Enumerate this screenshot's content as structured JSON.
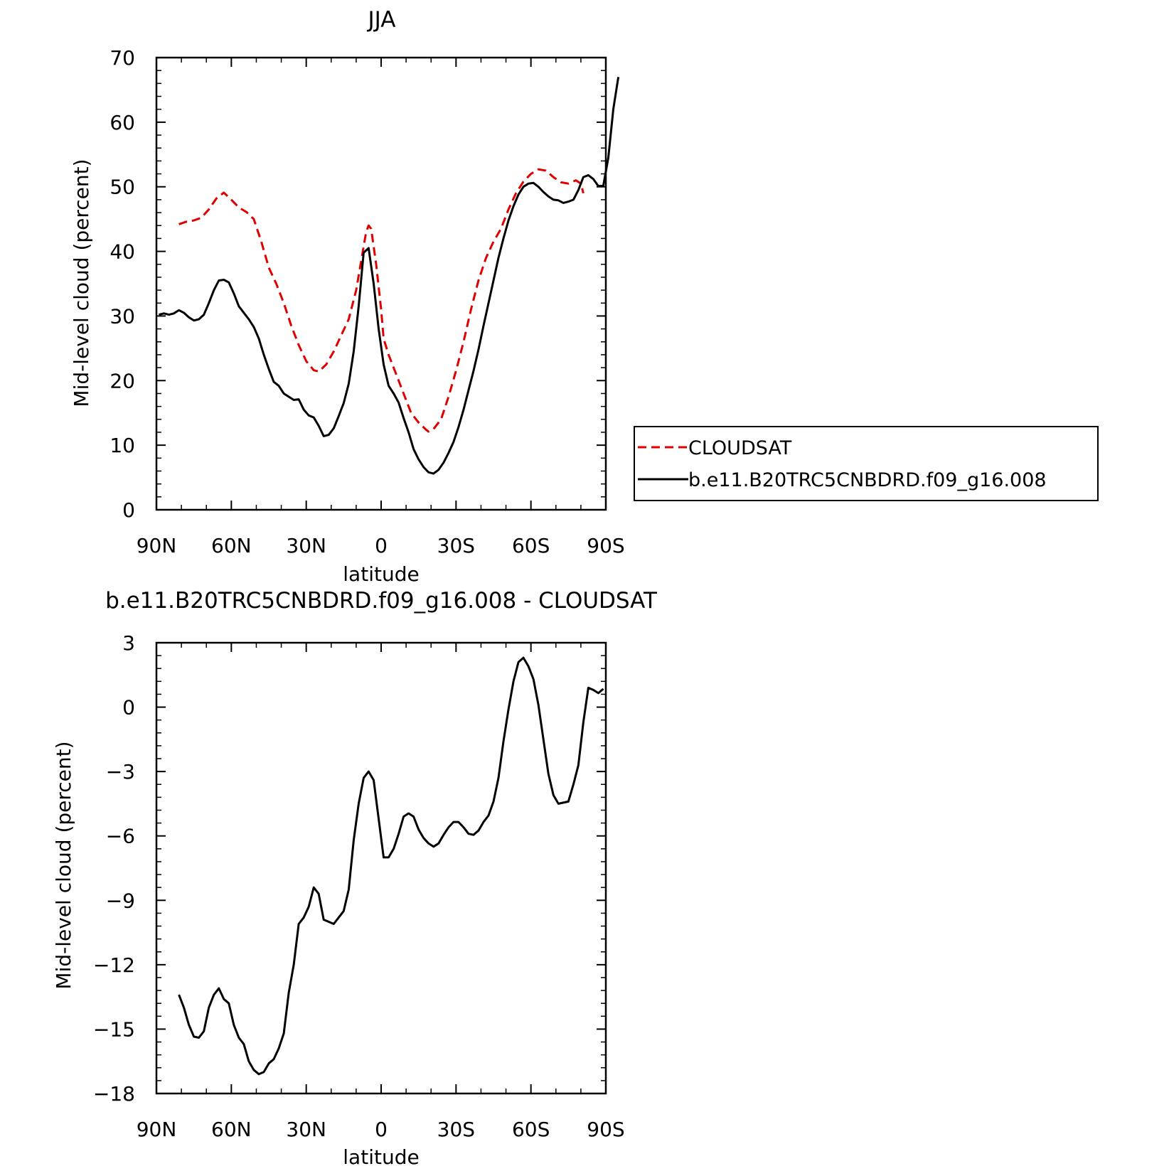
{
  "chart_data": [
    {
      "type": "line",
      "title": "JJA",
      "xlabel": "latitude",
      "ylabel": "Mid-level cloud (percent)",
      "xlim": [
        90,
        -90
      ],
      "ylim": [
        0,
        70
      ],
      "x_ticks": [
        {
          "value": 90,
          "label": "90N"
        },
        {
          "value": 60,
          "label": "60N"
        },
        {
          "value": 30,
          "label": "30N"
        },
        {
          "value": 0,
          "label": "0"
        },
        {
          "value": -30,
          "label": "30S"
        },
        {
          "value": -60,
          "label": "60S"
        },
        {
          "value": -90,
          "label": "90S"
        }
      ],
      "y_ticks": [
        0,
        10,
        20,
        30,
        40,
        50,
        60,
        70
      ],
      "grid": false,
      "legend": {
        "placement": "right"
      },
      "series": [
        {
          "name": "CLOUDSAT",
          "color": "#e00000",
          "dash": "dashed",
          "points": [
            [
              81,
              44.2
            ],
            [
              78,
              44.6
            ],
            [
              75,
              44.8
            ],
            [
              72,
              45.2
            ],
            [
              69,
              46.5
            ],
            [
              66,
              48.2
            ],
            [
              63,
              49.1
            ],
            [
              60,
              48.0
            ],
            [
              57,
              46.8
            ],
            [
              54,
              46.1
            ],
            [
              51,
              45.0
            ],
            [
              48,
              41.5
            ],
            [
              45,
              37.5
            ],
            [
              42,
              35.0
            ],
            [
              39,
              32.0
            ],
            [
              36,
              28.5
            ],
            [
              33,
              25.5
            ],
            [
              30,
              23.0
            ],
            [
              27,
              21.6
            ],
            [
              25,
              21.4
            ],
            [
              22,
              22.5
            ],
            [
              19,
              24.5
            ],
            [
              16,
              27.0
            ],
            [
              13,
              29.5
            ],
            [
              10,
              34.0
            ],
            [
              8,
              38.5
            ],
            [
              6,
              43.0
            ],
            [
              5,
              44.0
            ],
            [
              4,
              43.5
            ],
            [
              2,
              38.0
            ],
            [
              0,
              31.0
            ],
            [
              -1,
              26.5
            ],
            [
              -3,
              24.0
            ],
            [
              -6,
              21.0
            ],
            [
              -9,
              18.0
            ],
            [
              -12,
              15.0
            ],
            [
              -15,
              13.5
            ],
            [
              -18,
              12.4
            ],
            [
              -19,
              12.1
            ],
            [
              -21,
              12.5
            ],
            [
              -24,
              14.0
            ],
            [
              -27,
              17.5
            ],
            [
              -30,
              21.5
            ],
            [
              -33,
              26.0
            ],
            [
              -36,
              31.0
            ],
            [
              -39,
              35.5
            ],
            [
              -42,
              39.0
            ],
            [
              -45,
              41.5
            ],
            [
              -48,
              43.5
            ],
            [
              -51,
              46.5
            ],
            [
              -54,
              49.0
            ],
            [
              -57,
              50.8
            ],
            [
              -60,
              52.0
            ],
            [
              -63,
              52.7
            ],
            [
              -66,
              52.5
            ],
            [
              -69,
              51.5
            ],
            [
              -72,
              50.7
            ],
            [
              -75,
              50.5
            ],
            [
              -78,
              51.0
            ],
            [
              -80,
              50.5
            ],
            [
              -81,
              49.0
            ]
          ]
        },
        {
          "name": "b.e11.B20TRC5CNBDRD.f09_g16.008",
          "color": "#000000",
          "dash": "solid",
          "points": [
            [
              89,
              30.2
            ],
            [
              87,
              30.4
            ],
            [
              85,
              30.2
            ],
            [
              83,
              30.4
            ],
            [
              81,
              30.9
            ],
            [
              79,
              30.5
            ],
            [
              77,
              29.8
            ],
            [
              75,
              29.3
            ],
            [
              73,
              29.5
            ],
            [
              71,
              30.2
            ],
            [
              69,
              32.0
            ],
            [
              67,
              34.0
            ],
            [
              65,
              35.5
            ],
            [
              63,
              35.6
            ],
            [
              61,
              35.2
            ],
            [
              59,
              33.5
            ],
            [
              57,
              31.5
            ],
            [
              55,
              30.5
            ],
            [
              53,
              29.5
            ],
            [
              51,
              28.3
            ],
            [
              49,
              26.5
            ],
            [
              47,
              24.0
            ],
            [
              45,
              21.8
            ],
            [
              43,
              19.8
            ],
            [
              41,
              19.2
            ],
            [
              39,
              18.0
            ],
            [
              37,
              17.5
            ],
            [
              35,
              17.0
            ],
            [
              33,
              17.1
            ],
            [
              31,
              15.5
            ],
            [
              29,
              14.6
            ],
            [
              27,
              14.3
            ],
            [
              25,
              13.0
            ],
            [
              23,
              11.4
            ],
            [
              21,
              11.6
            ],
            [
              19,
              12.6
            ],
            [
              17,
              14.5
            ],
            [
              15,
              16.5
            ],
            [
              13,
              19.5
            ],
            [
              11,
              24.5
            ],
            [
              9,
              31.5
            ],
            [
              7,
              39.8
            ],
            [
              5,
              40.5
            ],
            [
              3,
              35.0
            ],
            [
              1,
              28.0
            ],
            [
              -1,
              22.5
            ],
            [
              -3,
              19.2
            ],
            [
              -5,
              18.0
            ],
            [
              -7,
              16.6
            ],
            [
              -9,
              14.2
            ],
            [
              -11,
              12.0
            ],
            [
              -13,
              9.4
            ],
            [
              -15,
              7.8
            ],
            [
              -17,
              6.6
            ],
            [
              -19,
              5.8
            ],
            [
              -21,
              5.6
            ],
            [
              -23,
              6.2
            ],
            [
              -25,
              7.3
            ],
            [
              -27,
              8.8
            ],
            [
              -29,
              10.5
            ],
            [
              -31,
              12.8
            ],
            [
              -33,
              15.5
            ],
            [
              -35,
              18.5
            ],
            [
              -37,
              21.5
            ],
            [
              -39,
              24.8
            ],
            [
              -41,
              28.5
            ],
            [
              -43,
              32.0
            ],
            [
              -45,
              35.5
            ],
            [
              -47,
              39.0
            ],
            [
              -49,
              42.0
            ],
            [
              -51,
              44.8
            ],
            [
              -53,
              47.0
            ],
            [
              -55,
              48.8
            ],
            [
              -57,
              50.0
            ],
            [
              -59,
              50.5
            ],
            [
              -61,
              50.6
            ],
            [
              -63,
              50.0
            ],
            [
              -65,
              49.2
            ],
            [
              -67,
              48.5
            ],
            [
              -69,
              48.0
            ],
            [
              -71,
              47.9
            ],
            [
              -73,
              47.5
            ],
            [
              -75,
              47.7
            ],
            [
              -77,
              48.0
            ],
            [
              -79,
              49.5
            ],
            [
              -81,
              51.5
            ],
            [
              -83,
              51.8
            ],
            [
              -85,
              51.2
            ],
            [
              -87,
              50.1
            ],
            [
              -89,
              50.2
            ],
            [
              -91,
              54.5
            ],
            [
              -93,
              62.0
            ],
            [
              -95,
              67.0
            ]
          ]
        }
      ]
    },
    {
      "type": "line",
      "title": "b.e11.B20TRC5CNBDRD.f09_g16.008 - CLOUDSAT",
      "xlabel": "latitude",
      "ylabel": "Mid-level cloud (percent)",
      "xlim": [
        90,
        -90
      ],
      "ylim": [
        -18,
        3
      ],
      "x_ticks": [
        {
          "value": 90,
          "label": "90N"
        },
        {
          "value": 60,
          "label": "60N"
        },
        {
          "value": 30,
          "label": "30N"
        },
        {
          "value": 0,
          "label": "0"
        },
        {
          "value": -30,
          "label": "30S"
        },
        {
          "value": -60,
          "label": "60S"
        },
        {
          "value": -90,
          "label": "90S"
        }
      ],
      "y_ticks": [
        {
          "value": 3,
          "label": "3"
        },
        {
          "value": 0,
          "label": "0"
        },
        {
          "value": -3,
          "label": "−3"
        },
        {
          "value": -6,
          "label": "−6"
        },
        {
          "value": -9,
          "label": "−9"
        },
        {
          "value": -12,
          "label": "−12"
        },
        {
          "value": -15,
          "label": "−15"
        },
        {
          "value": -18,
          "label": "−18"
        }
      ],
      "grid": false,
      "series": [
        {
          "color": "#000000",
          "dash": "solid",
          "points": [
            [
              81,
              -13.4
            ],
            [
              79,
              -14.0
            ],
            [
              77,
              -14.8
            ],
            [
              75,
              -15.35
            ],
            [
              73,
              -15.4
            ],
            [
              71,
              -15.1
            ],
            [
              69,
              -14.0
            ],
            [
              67,
              -13.4
            ],
            [
              65,
              -13.1
            ],
            [
              63,
              -13.6
            ],
            [
              61,
              -13.8
            ],
            [
              59,
              -14.8
            ],
            [
              57,
              -15.4
            ],
            [
              55,
              -15.7
            ],
            [
              53,
              -16.5
            ],
            [
              51,
              -16.9
            ],
            [
              49,
              -17.1
            ],
            [
              47,
              -17.0
            ],
            [
              45,
              -16.6
            ],
            [
              43,
              -16.4
            ],
            [
              41,
              -15.9
            ],
            [
              39,
              -15.2
            ],
            [
              37,
              -13.3
            ],
            [
              35,
              -12.0
            ],
            [
              33,
              -10.1
            ],
            [
              31,
              -9.8
            ],
            [
              29,
              -9.3
            ],
            [
              27,
              -8.4
            ],
            [
              25,
              -8.7
            ],
            [
              23,
              -9.9
            ],
            [
              21,
              -10.0
            ],
            [
              19,
              -10.1
            ],
            [
              17,
              -9.8
            ],
            [
              15,
              -9.5
            ],
            [
              13,
              -8.5
            ],
            [
              11,
              -6.2
            ],
            [
              9,
              -4.5
            ],
            [
              7,
              -3.3
            ],
            [
              5,
              -3.0
            ],
            [
              3,
              -3.4
            ],
            [
              1,
              -5.2
            ],
            [
              -1,
              -7.0
            ],
            [
              -3,
              -7.0
            ],
            [
              -5,
              -6.6
            ],
            [
              -7,
              -5.9
            ],
            [
              -9,
              -5.1
            ],
            [
              -11,
              -4.95
            ],
            [
              -13,
              -5.1
            ],
            [
              -15,
              -5.7
            ],
            [
              -17,
              -6.1
            ],
            [
              -19,
              -6.35
            ],
            [
              -21,
              -6.5
            ],
            [
              -23,
              -6.35
            ],
            [
              -25,
              -5.95
            ],
            [
              -27,
              -5.6
            ],
            [
              -29,
              -5.35
            ],
            [
              -31,
              -5.35
            ],
            [
              -33,
              -5.6
            ],
            [
              -35,
              -5.9
            ],
            [
              -37,
              -5.95
            ],
            [
              -39,
              -5.75
            ],
            [
              -41,
              -5.35
            ],
            [
              -43,
              -5.05
            ],
            [
              -45,
              -4.4
            ],
            [
              -47,
              -3.3
            ],
            [
              -49,
              -1.6
            ],
            [
              -51,
              -0.1
            ],
            [
              -53,
              1.2
            ],
            [
              -55,
              2.1
            ],
            [
              -57,
              2.3
            ],
            [
              -59,
              1.9
            ],
            [
              -61,
              1.3
            ],
            [
              -63,
              0.1
            ],
            [
              -65,
              -1.5
            ],
            [
              -67,
              -3.1
            ],
            [
              -69,
              -4.1
            ],
            [
              -71,
              -4.5
            ],
            [
              -73,
              -4.45
            ],
            [
              -75,
              -4.4
            ],
            [
              -77,
              -3.6
            ],
            [
              -79,
              -2.7
            ],
            [
              -81,
              -0.7
            ],
            [
              -83,
              0.9
            ],
            [
              -85,
              0.8
            ],
            [
              -87,
              0.65
            ],
            [
              -89,
              0.85
            ]
          ]
        }
      ]
    }
  ]
}
